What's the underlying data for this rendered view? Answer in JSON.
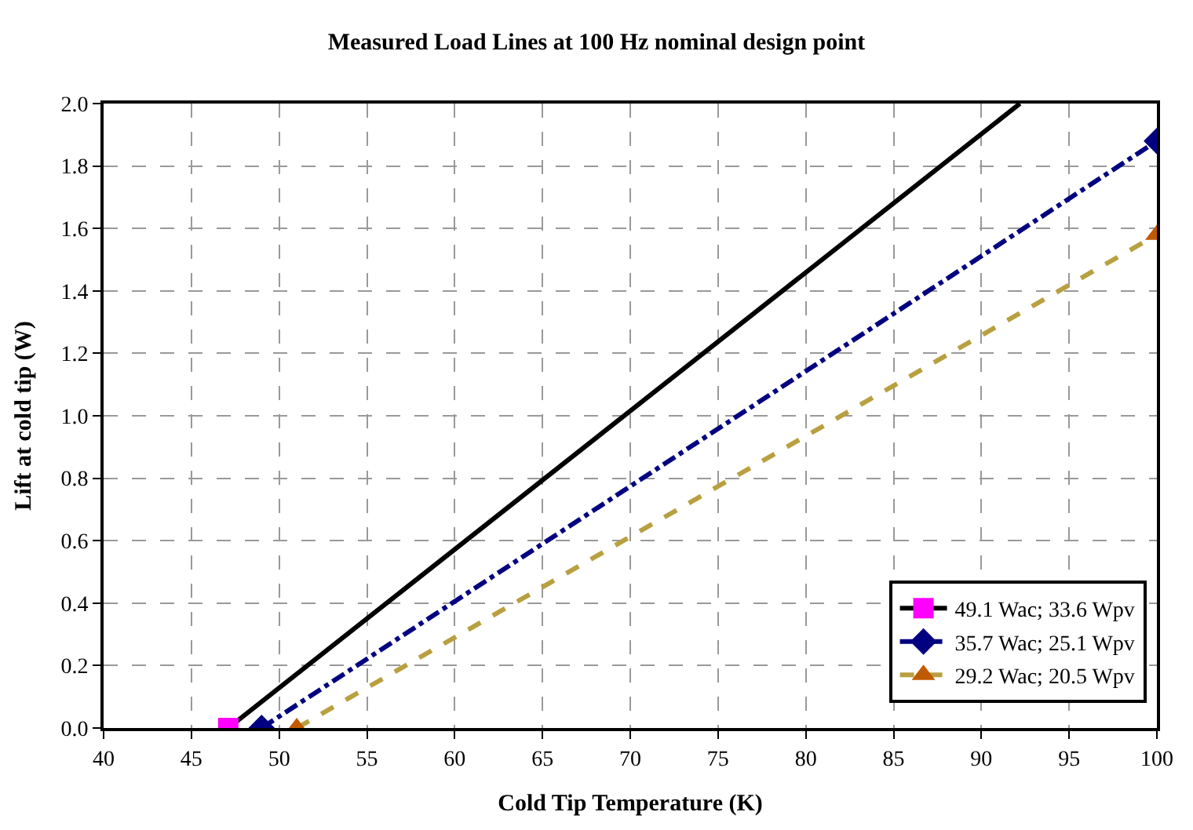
{
  "chart_data": {
    "type": "line",
    "title": "Measured Load Lines at 100 Hz nominal design point",
    "xlabel": "Cold Tip Temperature (K)",
    "ylabel": "Lift at cold tip (W)",
    "xlim": [
      40,
      100
    ],
    "xticks": [
      40,
      45,
      50,
      55,
      60,
      65,
      70,
      75,
      80,
      85,
      90,
      95,
      100
    ],
    "ylim": [
      0,
      2.0
    ],
    "yticks": [
      {
        "value": 0,
        "label": "0.0"
      },
      {
        "value": 0.2,
        "label": "0.2"
      },
      {
        "value": 0.4,
        "label": "0.4"
      },
      {
        "value": 0.6,
        "label": "0.6"
      },
      {
        "value": 0.8,
        "label": "0.8"
      },
      {
        "value": 1.0,
        "label": "1.0"
      },
      {
        "value": 1.2,
        "label": "1.2"
      },
      {
        "value": 1.4,
        "label": "1.4"
      },
      {
        "value": 1.6,
        "label": "1.6"
      },
      {
        "value": 1.8,
        "label": "1.8"
      },
      {
        "value": 2.0,
        "label": "2.0"
      }
    ],
    "grid": true,
    "legend": "bottom right",
    "series": [
      {
        "name": "49.1 Wac; 33.6 Wpv",
        "color": "#000000",
        "x": [
          47.1,
          92.2
        ],
        "values": [
          0,
          2.0
        ],
        "colors": [
          "#ff00ff",
          null
        ],
        "marker": "square",
        "line_style": "solid"
      },
      {
        "name": "35.7 Wac; 25.1 Wpv",
        "color": "#000080",
        "x": [
          49,
          100
        ],
        "values": [
          0,
          1.88
        ],
        "colors": [
          "#000080",
          "#000080"
        ],
        "marker": "diamond",
        "line_style": "dashdot"
      },
      {
        "name": "29.2 Wac; 20.5 Wpv",
        "color": "#b8a040",
        "x": [
          51,
          100
        ],
        "values": [
          0,
          1.58
        ],
        "colors": [
          "#c05a00",
          "#c05a00"
        ],
        "marker": "triangle",
        "line_style": "dashed"
      }
    ]
  }
}
